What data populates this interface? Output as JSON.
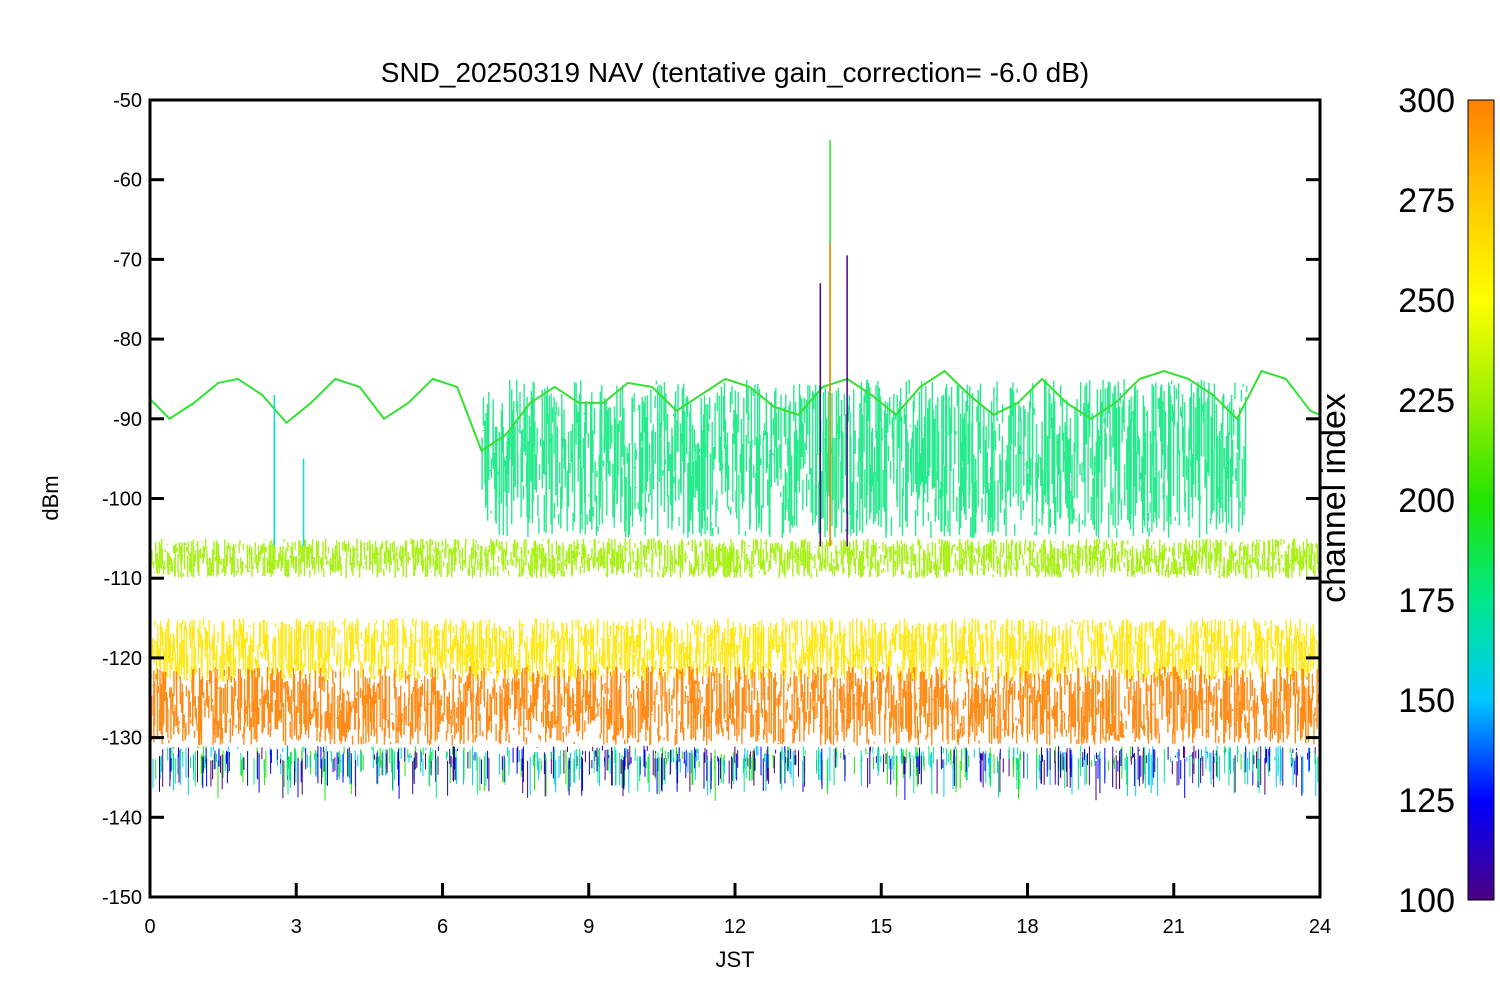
{
  "chart_data": {
    "type": "line",
    "title": "SND_20250319 NAV (tentative gain_correction= -6.0 dB)",
    "xlabel": "JST",
    "ylabel": "dBm",
    "xlim": [
      0,
      24
    ],
    "ylim": [
      -150,
      -50
    ],
    "x_ticks": [
      "0",
      "3",
      "6",
      "9",
      "12",
      "15",
      "18",
      "21",
      "24"
    ],
    "x_tick_values": [
      0,
      3,
      6,
      9,
      12,
      15,
      18,
      21,
      24
    ],
    "y_ticks": [
      "-50",
      "-60",
      "-70",
      "-80",
      "-90",
      "-100",
      "-110",
      "-120",
      "-130",
      "-140",
      "-150"
    ],
    "y_tick_values": [
      -50,
      -60,
      -70,
      -80,
      -90,
      -100,
      -110,
      -120,
      -130,
      -140,
      -150
    ],
    "grid": false,
    "colorbar": {
      "label": "channel index",
      "range": [
        100,
        300
      ],
      "ticks": [
        "300",
        "275",
        "250",
        "225",
        "200",
        "175",
        "150",
        "125",
        "100"
      ],
      "tick_values": [
        300,
        275,
        250,
        225,
        200,
        175,
        150,
        125,
        100
      ],
      "colormap": [
        "#4b0082",
        "#0000ff",
        "#00c8ff",
        "#00e88a",
        "#22e400",
        "#9cf000",
        "#ffff00",
        "#ffc800",
        "#ff8000"
      ]
    },
    "bands": [
      {
        "channel": 290,
        "color": "#ff8000",
        "center_dBm": -126,
        "spread_dBm": 5,
        "time_range": [
          0,
          24
        ]
      },
      {
        "channel": 270,
        "color": "#ffe600",
        "center_dBm": -119,
        "spread_dBm": 4,
        "time_range": [
          0,
          24
        ]
      },
      {
        "channel": 250,
        "color": "#a0f000",
        "center_dBm": -107.5,
        "spread_dBm": 2.5,
        "time_range": [
          0,
          24
        ]
      },
      {
        "channel": 210,
        "color": "#10e880",
        "center_dBm": -95,
        "spread_dBm": 10,
        "time_range": [
          6.8,
          22.5
        ]
      }
    ],
    "series": [
      {
        "color": "#33e033",
        "x": [
          0,
          0.4,
          0.9,
          1.4,
          1.8,
          2.3,
          2.8,
          3.3,
          3.8,
          4.3,
          4.8,
          5.3,
          5.8,
          6.3,
          6.8,
          7.3,
          7.8,
          8.3,
          8.8,
          9.3,
          9.8,
          10.3,
          10.8,
          11.3,
          11.8,
          12.3,
          12.8,
          13.3,
          13.8,
          14.3,
          14.8,
          15.3,
          15.8,
          16.3,
          16.8,
          17.3,
          17.8,
          18.3,
          18.8,
          19.3,
          19.8,
          20.3,
          20.8,
          21.3,
          21.8,
          22.3,
          22.8,
          23.3,
          23.8,
          24
        ],
        "y": [
          -87.5,
          -90,
          -88,
          -85.5,
          -85,
          -87,
          -90.5,
          -88,
          -85,
          -86,
          -90,
          -88,
          -85,
          -86,
          -94,
          -92,
          -88,
          -86,
          -88,
          -88,
          -85.5,
          -86,
          -89,
          -87,
          -85,
          -86,
          -88.5,
          -89.5,
          -86,
          -85,
          -87,
          -89.5,
          -86,
          -84,
          -87,
          -89.5,
          -88,
          -85,
          -88,
          -90,
          -88,
          -85,
          -84,
          -85,
          -87,
          -90,
          -84,
          -85,
          -89,
          -89.5
        ]
      }
    ],
    "spikes": [
      {
        "x": 13.95,
        "y": -55,
        "color": "#33e033"
      },
      {
        "x": 13.95,
        "y": -68,
        "color": "#ff8000"
      },
      {
        "x": 14.3,
        "y": -69.5,
        "color": "#4b0082"
      },
      {
        "x": 13.75,
        "y": -73,
        "color": "#4b0082"
      },
      {
        "x": 2.55,
        "y": -87,
        "color": "#00e0e0"
      },
      {
        "x": 3.15,
        "y": -95,
        "color": "#00e0e0"
      }
    ]
  }
}
